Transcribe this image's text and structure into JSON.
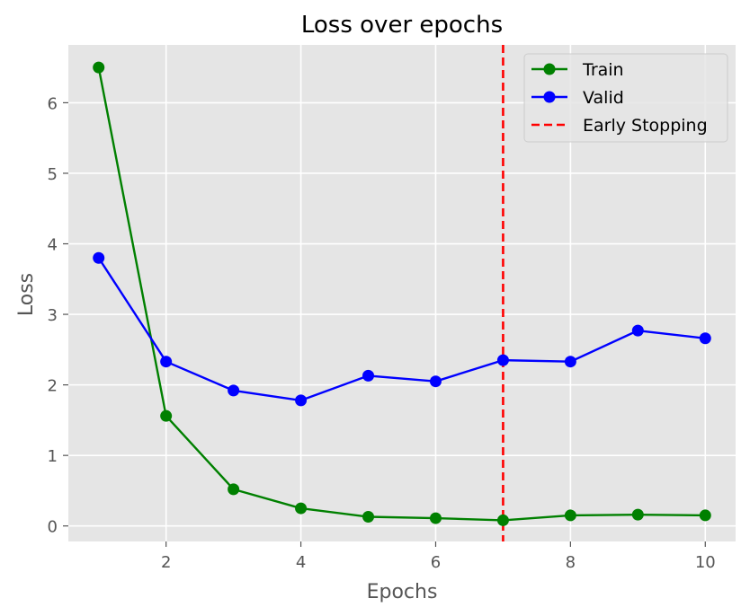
{
  "chart_data": {
    "type": "line",
    "title": "Loss over epochs",
    "xlabel": "Epochs",
    "ylabel": "Loss",
    "xlim": [
      0.55,
      10.45
    ],
    "ylim": [
      -0.22,
      6.82
    ],
    "xticks": [
      2,
      4,
      6,
      8,
      10
    ],
    "yticks": [
      0,
      1,
      2,
      3,
      4,
      5,
      6
    ],
    "grid": true,
    "legend_position": "top-right",
    "x": [
      1,
      2,
      3,
      4,
      5,
      6,
      7,
      8,
      9,
      10
    ],
    "series": [
      {
        "name": "Train",
        "color": "#008000",
        "marker": "circle",
        "values": [
          6.5,
          1.56,
          0.52,
          0.25,
          0.13,
          0.11,
          0.08,
          0.15,
          0.16,
          0.15
        ]
      },
      {
        "name": "Valid",
        "color": "#0000ff",
        "marker": "circle",
        "values": [
          3.8,
          2.33,
          1.92,
          1.78,
          2.13,
          2.05,
          2.35,
          2.33,
          2.77,
          2.66
        ]
      }
    ],
    "vlines": [
      {
        "name": "Early Stopping",
        "x": 7,
        "color": "#ff0000",
        "style": "dashed"
      }
    ],
    "background_color": "#e5e5e5",
    "grid_color": "#ffffff"
  }
}
